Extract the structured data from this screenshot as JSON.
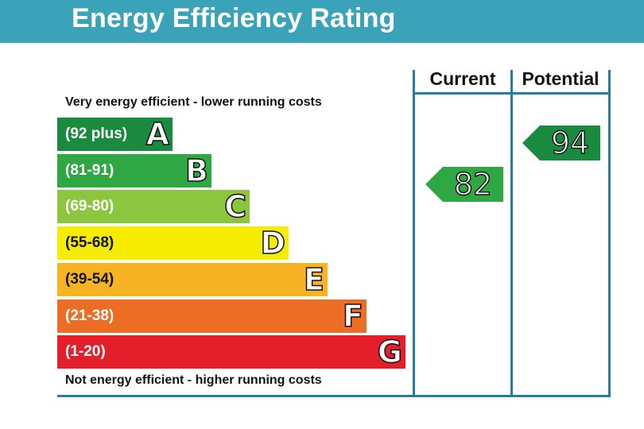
{
  "header": {
    "title": "Energy Efficiency Rating"
  },
  "notes": {
    "top": "Very energy efficient - lower running costs",
    "bottom": "Not energy efficient - higher running costs"
  },
  "columns": {
    "current": "Current",
    "potential": "Potential"
  },
  "chart_data": {
    "type": "bar",
    "title": "Energy Efficiency Rating",
    "bands": [
      {
        "letter": "A",
        "range": "(92 plus)",
        "color": "#1a8a3e"
      },
      {
        "letter": "B",
        "range": "(81-91)",
        "color": "#2fa844"
      },
      {
        "letter": "C",
        "range": "(69-80)",
        "color": "#8cc63f"
      },
      {
        "letter": "D",
        "range": "(55-68)",
        "color": "#f5ec00"
      },
      {
        "letter": "E",
        "range": "(39-54)",
        "color": "#f8b322"
      },
      {
        "letter": "F",
        "range": "(21-38)",
        "color": "#ed6d24"
      },
      {
        "letter": "G",
        "range": "(1-20)",
        "color": "#e41e2a"
      }
    ],
    "current": {
      "value": "82",
      "band": "B",
      "color": "#2fa844"
    },
    "potential": {
      "value": "94",
      "band": "A",
      "color": "#1a8a3e"
    }
  }
}
